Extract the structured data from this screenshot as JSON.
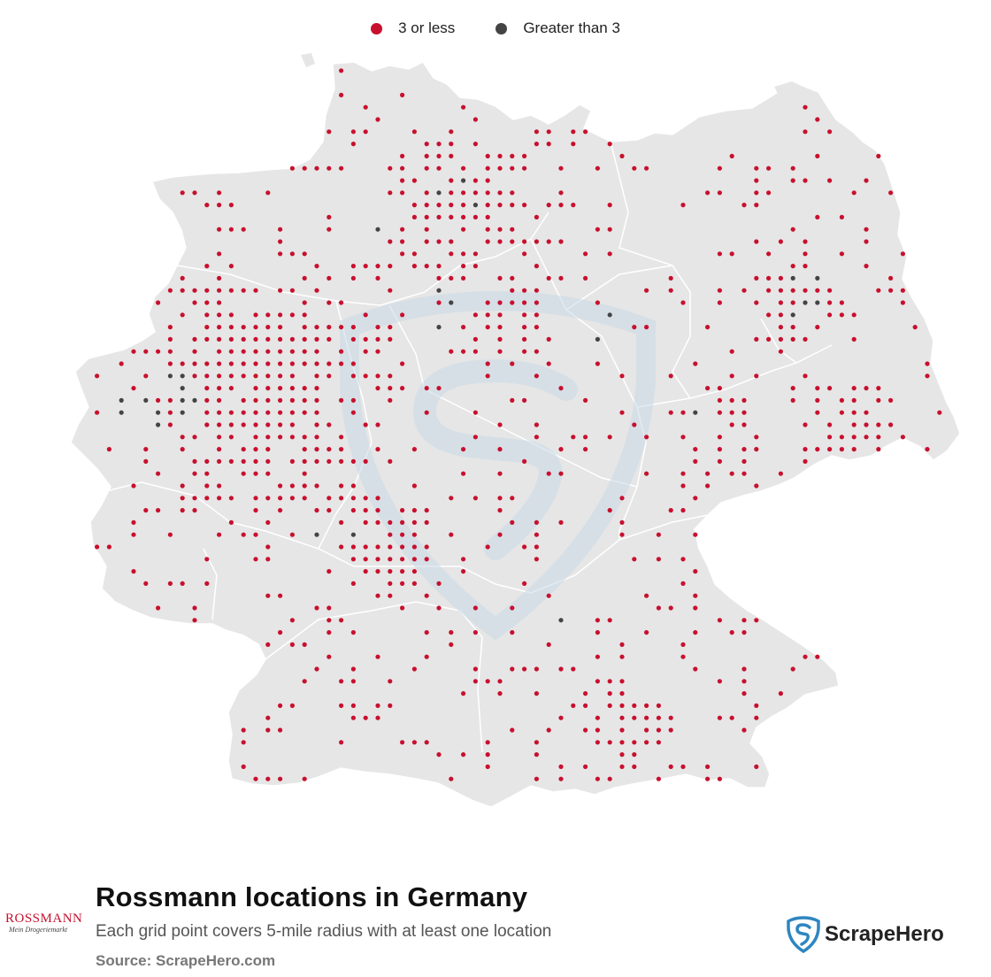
{
  "legend": {
    "items": [
      {
        "label": "3 or less",
        "color": "#c8102e"
      },
      {
        "label": "Greater than 3",
        "color": "#444444"
      }
    ]
  },
  "map": {
    "land_color": "#e6e6e6",
    "border_color": "#ffffff",
    "watermark_color": "#c9dbe6"
  },
  "footer": {
    "title": "Rossmann locations in Germany",
    "subtitle": "Each grid point covers 5-mile radius with at least one location",
    "source": "Source: ScrapeHero.com",
    "brand_logo_text": "ROSSMANN",
    "brand_logo_tagline": "Mein Drogeriemarkt",
    "scrapehero_logo_text": "ScrapeHero"
  }
}
